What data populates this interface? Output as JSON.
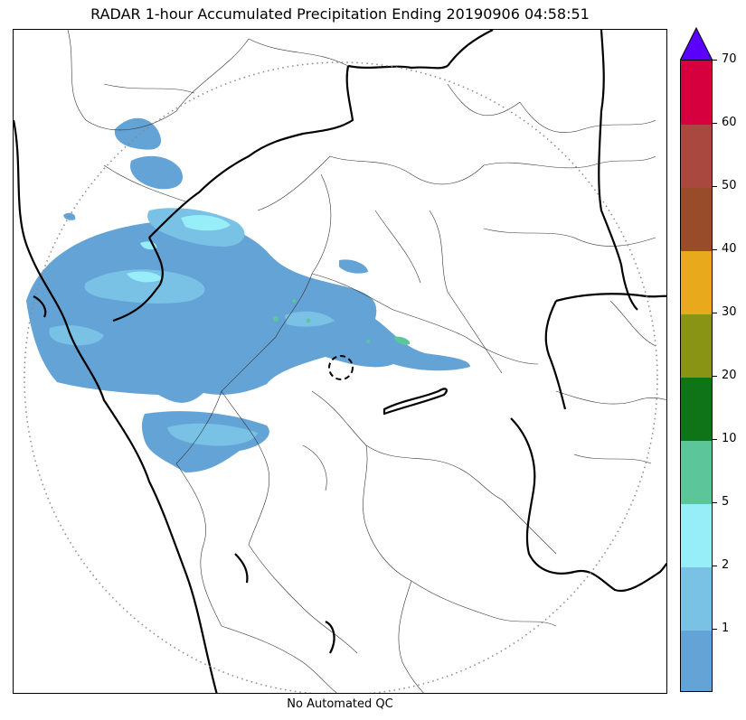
{
  "title": "RADAR 1-hour Accumulated Precipitation Ending 20190906 04:58:51",
  "footer": "No Automated QC",
  "colorbar": {
    "extend": "max",
    "overflow_color": "#5a00ff",
    "levels": [
      {
        "from": 0,
        "to": 1,
        "color": "#64a3d6"
      },
      {
        "from": 1,
        "to": 2,
        "color": "#79c1e5"
      },
      {
        "from": 2,
        "to": 5,
        "color": "#97eef9"
      },
      {
        "from": 5,
        "to": 10,
        "color": "#5cc59a"
      },
      {
        "from": 10,
        "to": 20,
        "color": "#0f7418"
      },
      {
        "from": 20,
        "to": 30,
        "color": "#8a9414"
      },
      {
        "from": 30,
        "to": 40,
        "color": "#e8a91c"
      },
      {
        "from": 40,
        "to": 50,
        "color": "#984c29"
      },
      {
        "from": 50,
        "to": 60,
        "color": "#a8483e"
      },
      {
        "from": 60,
        "to": 70,
        "color": "#d6003e"
      }
    ],
    "tick_labels": [
      "1",
      "2",
      "5",
      "10",
      "20",
      "30",
      "40",
      "50",
      "60",
      "70"
    ]
  },
  "map": {
    "radar_range_ring": "dotted-gray",
    "radar_site_marker": "dashed-circle",
    "boundaries": [
      "state-borders-thick",
      "district-borders-thin"
    ],
    "precip_colors": {
      "light": "#64a3d6",
      "moderate": "#79c1e5",
      "heavy": "#97eef9",
      "intense": "#5cc59a"
    }
  }
}
